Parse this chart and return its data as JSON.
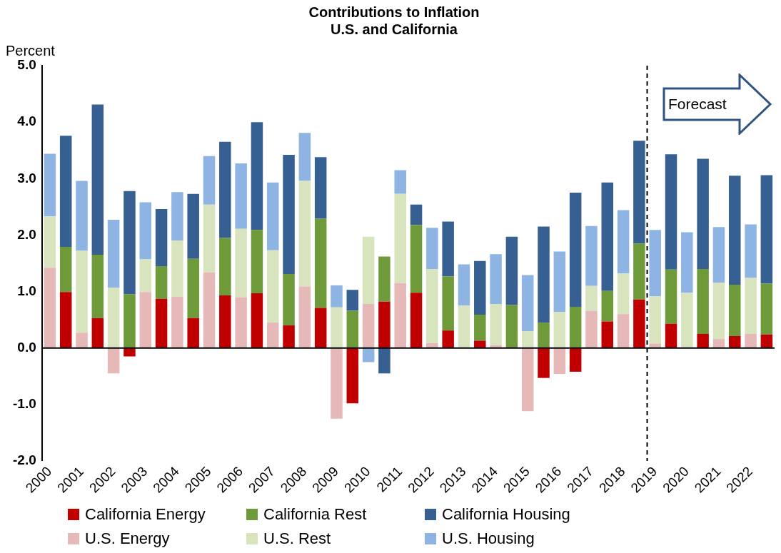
{
  "chart_data": {
    "type": "bar",
    "title": "Contributions to Inflation\nU.S. and California",
    "ylabel": "Percent",
    "categories": [
      "2000",
      null,
      "2001",
      null,
      "2002",
      null,
      "2003",
      null,
      "2004",
      null,
      "2005",
      null,
      "2006",
      null,
      "2007",
      null,
      "2008",
      null,
      "2009",
      null,
      "2010",
      null,
      "2011",
      null,
      "2012",
      null,
      "2013",
      null,
      "2014",
      null,
      "2015",
      null,
      "2016",
      null,
      "2017",
      null,
      "2018",
      null,
      "2019",
      null,
      "2020",
      null,
      "2021",
      null,
      "2022",
      null
    ],
    "stacked": true,
    "series": [
      {
        "name": "California Energy",
        "color": "#c00000",
        "values": [
          null,
          0.99,
          null,
          0.53,
          null,
          -0.15,
          null,
          0.87,
          null,
          0.53,
          null,
          0.93,
          null,
          0.97,
          null,
          0.4,
          null,
          0.71,
          null,
          -0.98,
          null,
          0.82,
          null,
          0.98,
          null,
          0.31,
          null,
          0.13,
          null,
          null,
          null,
          -0.53,
          null,
          -0.42,
          null,
          0.47,
          null,
          0.86,
          null,
          0.43,
          null,
          0.25,
          null,
          0.21,
          null,
          0.24
        ]
      },
      {
        "name": "California Rest",
        "color": "#6f9a3a",
        "values": [
          null,
          0.8,
          null,
          1.12,
          null,
          0.95,
          null,
          0.58,
          null,
          1.05,
          null,
          1.02,
          null,
          1.12,
          null,
          0.91,
          null,
          1.58,
          null,
          0.66,
          null,
          0.8,
          null,
          1.2,
          null,
          0.96,
          null,
          0.46,
          null,
          0.76,
          null,
          0.45,
          null,
          0.73,
          null,
          0.54,
          null,
          0.99,
          null,
          0.96,
          null,
          1.15,
          null,
          0.91,
          null,
          0.9
        ]
      },
      {
        "name": "California Housing",
        "color": "#366092",
        "values": [
          null,
          1.97,
          null,
          2.66,
          null,
          1.83,
          null,
          1.01,
          null,
          1.15,
          null,
          1.7,
          null,
          1.91,
          null,
          2.11,
          null,
          1.09,
          null,
          0.37,
          null,
          -0.45,
          null,
          0.36,
          null,
          0.97,
          null,
          0.95,
          null,
          1.21,
          null,
          1.7,
          null,
          2.02,
          null,
          1.92,
          null,
          1.82,
          null,
          2.04,
          null,
          1.95,
          null,
          1.93,
          null,
          1.92
        ]
      },
      {
        "name": "U.S. Energy",
        "color": "#e6b8b7",
        "values": [
          1.42,
          null,
          0.27,
          null,
          -0.45,
          null,
          0.99,
          null,
          0.91,
          null,
          1.34,
          null,
          0.9,
          null,
          0.45,
          null,
          1.09,
          null,
          -1.25,
          null,
          0.78,
          null,
          1.15,
          null,
          0.09,
          null,
          null,
          null,
          0.05,
          null,
          -1.12,
          null,
          -0.46,
          null,
          0.66,
          null,
          0.6,
          null,
          0.08,
          null,
          null,
          null,
          0.16,
          null,
          0.25,
          null
        ]
      },
      {
        "name": "U.S. Rest",
        "color": "#d7e4bd",
        "values": [
          0.91,
          null,
          1.45,
          null,
          1.07,
          null,
          0.58,
          null,
          0.99,
          null,
          1.2,
          null,
          1.21,
          null,
          1.28,
          null,
          1.87,
          null,
          0.72,
          null,
          1.19,
          null,
          1.58,
          null,
          1.31,
          null,
          0.75,
          null,
          0.73,
          null,
          0.3,
          null,
          0.64,
          null,
          0.44,
          null,
          0.72,
          null,
          0.84,
          null,
          0.98,
          null,
          1.0,
          null,
          0.99,
          null
        ]
      },
      {
        "name": "U.S. Housing",
        "color": "#8db4e2",
        "values": [
          1.11,
          null,
          1.24,
          null,
          1.2,
          null,
          1.01,
          null,
          0.86,
          null,
          0.86,
          null,
          1.16,
          null,
          1.2,
          null,
          0.85,
          null,
          0.39,
          null,
          -0.25,
          null,
          0.42,
          null,
          0.73,
          null,
          0.73,
          null,
          0.88,
          null,
          0.99,
          null,
          1.07,
          null,
          1.06,
          null,
          1.12,
          null,
          1.17,
          null,
          1.07,
          null,
          0.98,
          null,
          0.95,
          null
        ]
      }
    ],
    "ylim": [
      -2,
      5
    ],
    "yticks": [
      {
        "value": -2,
        "label": "-2.0"
      },
      {
        "value": -1,
        "label": "-1.0"
      },
      {
        "value": 0,
        "label": "0.0"
      },
      {
        "value": 1,
        "label": "1.0"
      },
      {
        "value": 2,
        "label": "2.0"
      },
      {
        "value": 3,
        "label": "3.0"
      },
      {
        "value": 4,
        "label": "4.0"
      },
      {
        "value": 5,
        "label": "5.0"
      }
    ],
    "grid": false,
    "legend": "bottom",
    "ref_lines": [
      {
        "axis": "x",
        "value": "2019",
        "line_style": "dashed",
        "color": "#000000"
      }
    ],
    "annotations": [
      "Forecast"
    ]
  }
}
